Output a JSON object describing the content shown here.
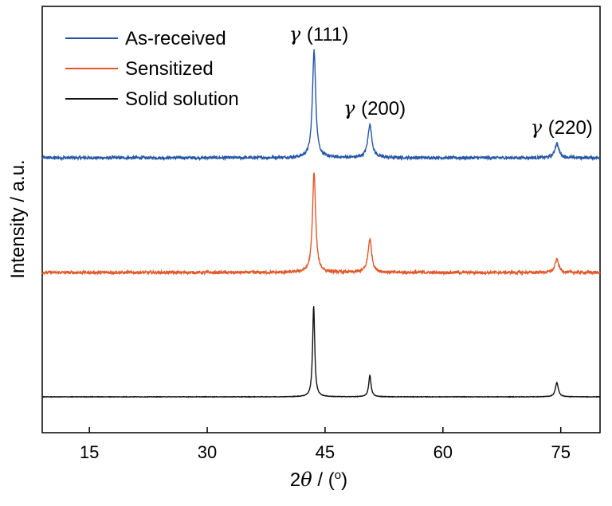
{
  "chart_data": {
    "type": "line",
    "title": "",
    "xlabel": "2θ / (°)",
    "xlabel_parts": {
      "prefix": "2",
      "symbol": "θ",
      "suffix": " / (",
      "degree": "o",
      "close": ")"
    },
    "ylabel": "Intensity / a.u.",
    "xlim": [
      9,
      80
    ],
    "xticks": [
      15,
      30,
      45,
      60,
      75
    ],
    "y_ticks_shown": false,
    "grid": false,
    "legend": {
      "placement": "top-left"
    },
    "baseline_offsets": [
      1.0,
      0.52,
      0.0
    ],
    "series": [
      {
        "name": "As-received",
        "color": "#2456a4",
        "offset": 1.0,
        "noise": 0.006,
        "peaks": [
          {
            "x": 43.6,
            "height": 0.45,
            "width": 0.25
          },
          {
            "x": 50.7,
            "height": 0.14,
            "width": 0.3
          },
          {
            "x": 74.5,
            "height": 0.06,
            "width": 0.3
          }
        ]
      },
      {
        "name": "Sensitized",
        "color": "#e0592b",
        "offset": 0.52,
        "noise": 0.006,
        "peaks": [
          {
            "x": 43.6,
            "height": 0.42,
            "width": 0.24
          },
          {
            "x": 50.7,
            "height": 0.14,
            "width": 0.28
          },
          {
            "x": 74.5,
            "height": 0.055,
            "width": 0.28
          }
        ]
      },
      {
        "name": "Solid solution",
        "color": "#111111",
        "offset": 0.0,
        "noise": 0.001,
        "peaks": [
          {
            "x": 43.55,
            "height": 0.38,
            "width": 0.16
          },
          {
            "x": 50.7,
            "height": 0.09,
            "width": 0.18
          },
          {
            "x": 74.5,
            "height": 0.06,
            "width": 0.22
          }
        ]
      }
    ],
    "annotations": [
      {
        "symbol": "γ",
        "text": "(111)",
        "x": 43.6
      },
      {
        "symbol": "γ",
        "text": "(200)",
        "x": 50.7
      },
      {
        "symbol": "γ",
        "text": "(220)",
        "x": 74.5
      }
    ]
  }
}
